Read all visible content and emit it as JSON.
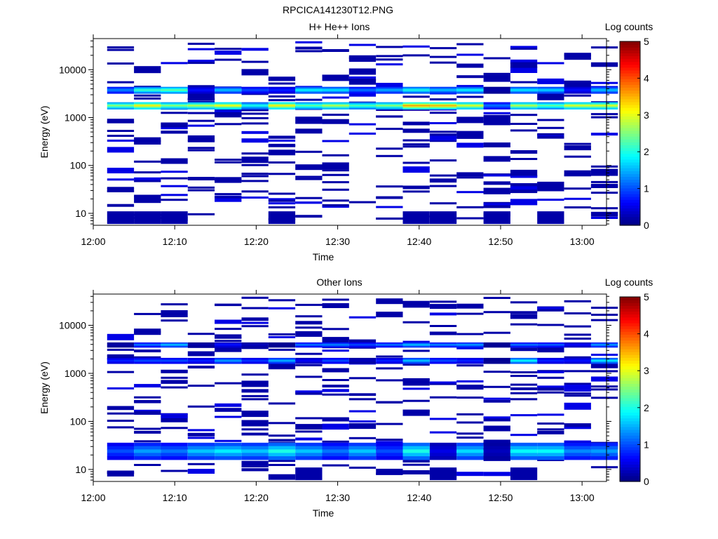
{
  "page_title": "RPCICA141230T12.PNG",
  "chart_data": [
    {
      "type": "heatmap",
      "title": "H+ He++ Ions",
      "xlabel": "Time",
      "ylabel": "Energy (eV)",
      "x_tick_labels": [
        "12:00",
        "12:10",
        "12:20",
        "12:30",
        "12:40",
        "12:50",
        "13:00"
      ],
      "x_range_minutes": [
        0,
        63
      ],
      "y_tick_labels": [
        "10",
        "100",
        "1000",
        "10000"
      ],
      "y_tick_values": [
        10,
        100,
        1000,
        10000
      ],
      "y_range_log10": [
        0.75,
        4.65
      ],
      "colorbar": {
        "label": "Log counts",
        "range": [
          0,
          5
        ],
        "tick_labels": [
          "0",
          "1",
          "2",
          "3",
          "4",
          "5"
        ]
      },
      "columns_start_minute": 1.7,
      "column_width_minutes": 3.3,
      "n_columns": 19,
      "bands": [
        {
          "e_lo": 1500,
          "e_hi": 2100,
          "levels": [
            2.6,
            3.2,
            2.6,
            2.8,
            3.1,
            2.0,
            3.2,
            2.4,
            2.8,
            2.3,
            2.6,
            3.6,
            3.5,
            3.0,
            1.2,
            2.8,
            2.4,
            3.0,
            3.0
          ]
        },
        {
          "e_lo": 3200,
          "e_hi": 4400,
          "levels": [
            1.3,
            2.2,
            2.4,
            0.7,
            1.6,
            1.0,
            0.8,
            1.9,
            1.8,
            1.2,
            1.5,
            2.0,
            1.6,
            1.9,
            0.2,
            1.8,
            1.7,
            0.7,
            1.6
          ]
        }
      ],
      "sparse_level": 0.2
    },
    {
      "type": "heatmap",
      "title": "Other Ions",
      "xlabel": "Time",
      "ylabel": "Energy (eV)",
      "x_tick_labels": [
        "12:00",
        "12:10",
        "12:20",
        "12:30",
        "12:40",
        "12:50",
        "13:00"
      ],
      "x_range_minutes": [
        0,
        63
      ],
      "y_tick_labels": [
        "10",
        "100",
        "1000",
        "10000"
      ],
      "y_tick_values": [
        10,
        100,
        1000,
        10000
      ],
      "y_range_log10": [
        0.75,
        4.65
      ],
      "colorbar": {
        "label": "Log counts",
        "range": [
          0,
          5
        ],
        "tick_labels": [
          "0",
          "1",
          "2",
          "3",
          "4",
          "5"
        ]
      },
      "columns_start_minute": 1.7,
      "column_width_minutes": 3.3,
      "n_columns": 19,
      "bands": [
        {
          "e_lo": 16,
          "e_hi": 36,
          "levels": [
            1.0,
            1.4,
            1.2,
            1.6,
            1.8,
            1.6,
            2.0,
            1.6,
            1.2,
            1.6,
            1.0,
            2.0,
            0.5,
            1.7,
            0.3,
            1.9,
            1.9,
            1.3,
            1.4
          ]
        },
        {
          "e_lo": 1600,
          "e_hi": 2100,
          "levels": [
            0.8,
            1.0,
            1.0,
            0.8,
            1.4,
            0.9,
            1.5,
            0.6,
            1.0,
            0.3,
            0.8,
            1.6,
            1.0,
            0.8,
            0.1,
            1.9,
            0.8,
            0.7,
            1.8
          ]
        },
        {
          "e_lo": 3500,
          "e_hi": 4400,
          "levels": [
            0.2,
            1.2,
            1.6,
            0.2,
            0.7,
            0.3,
            0.1,
            1.2,
            1.3,
            1.0,
            1.2,
            1.6,
            1.3,
            1.4,
            0.0,
            1.2,
            1.1,
            0.6,
            1.4
          ]
        }
      ],
      "sparse_level": 0.2
    }
  ]
}
